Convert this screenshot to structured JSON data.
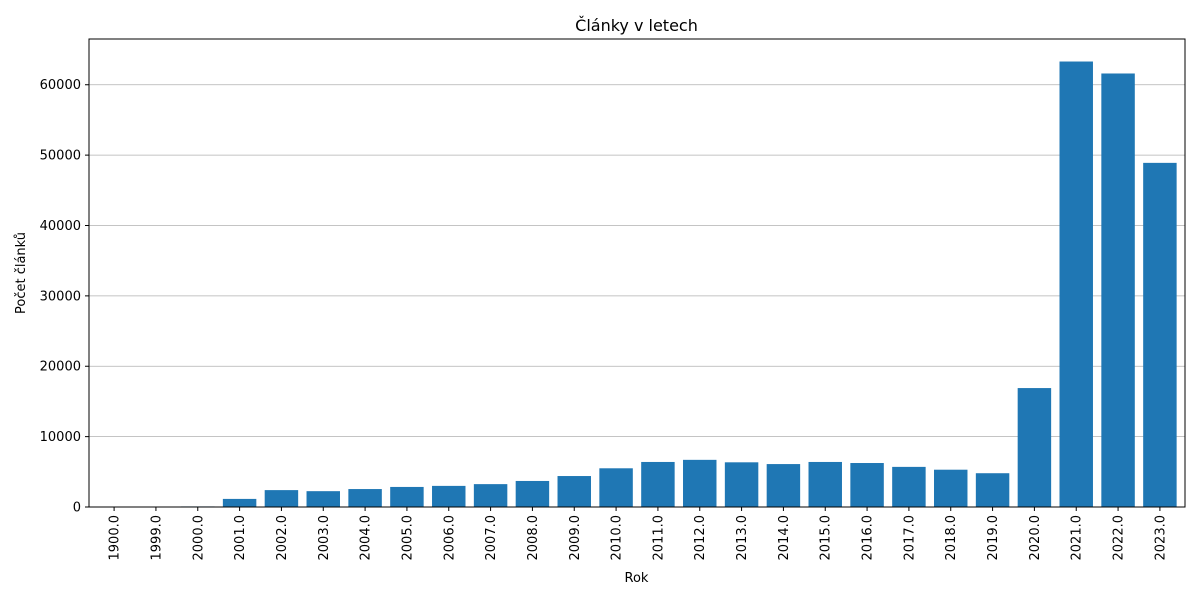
{
  "chart_data": {
    "type": "bar",
    "title": "Články v letech",
    "xlabel": "Rok",
    "ylabel": "Počet článků",
    "categories": [
      "1900.0",
      "1999.0",
      "2000.0",
      "2001.0",
      "2002.0",
      "2003.0",
      "2004.0",
      "2005.0",
      "2006.0",
      "2007.0",
      "2008.0",
      "2009.0",
      "2010.0",
      "2011.0",
      "2012.0",
      "2013.0",
      "2014.0",
      "2015.0",
      "2016.0",
      "2017.0",
      "2018.0",
      "2019.0",
      "2020.0",
      "2021.0",
      "2022.0",
      "2023.0"
    ],
    "values": [
      10,
      20,
      80,
      1150,
      2400,
      2250,
      2550,
      2850,
      3000,
      3250,
      3700,
      4400,
      5500,
      6400,
      6700,
      6350,
      6100,
      6400,
      6250,
      5700,
      5300,
      4800,
      16900,
      63300,
      61600,
      48900
    ],
    "ylim": [
      0,
      66500
    ],
    "yticks": [
      0,
      10000,
      20000,
      30000,
      40000,
      50000,
      60000
    ],
    "grid": "y",
    "bar_color": "#1f77b4"
  }
}
